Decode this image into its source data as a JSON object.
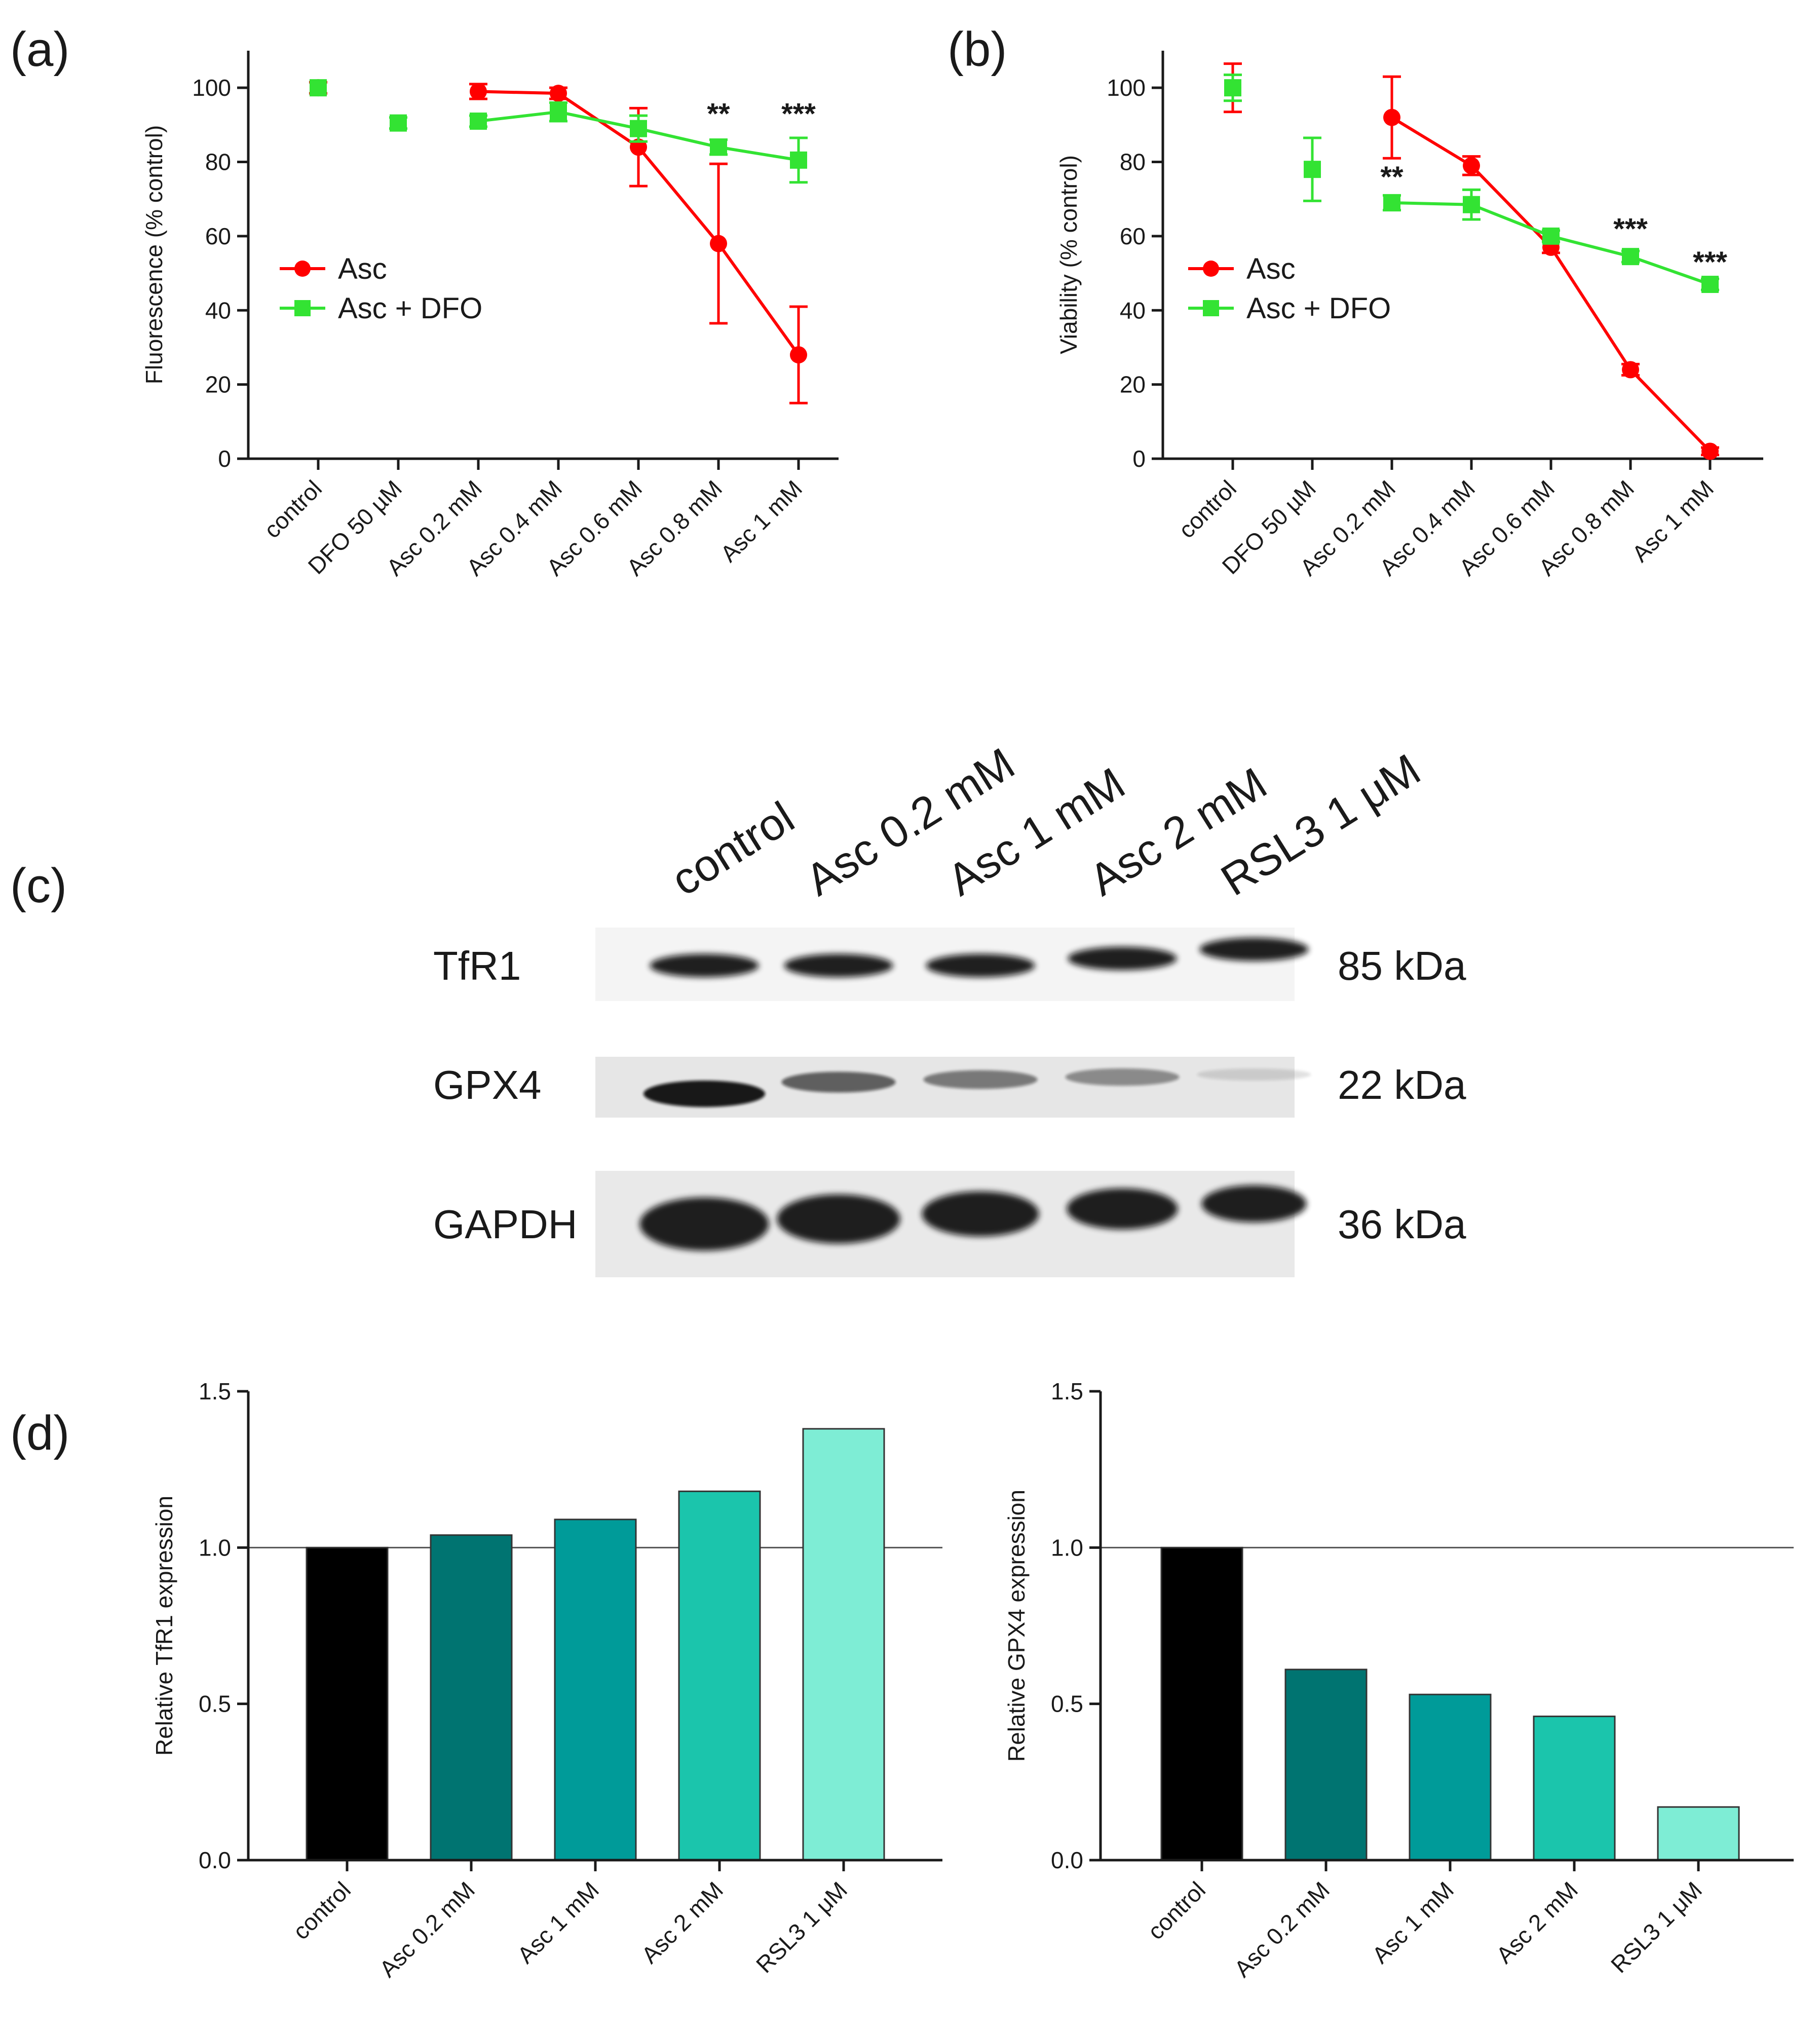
{
  "colors": {
    "asc": "#ff0000",
    "asc_dfo": "#33e333",
    "axis": "#1a1a1a",
    "bars": [
      "#000000",
      "#007471",
      "#009b99",
      "#1bc5ac",
      "#7eedd5"
    ]
  },
  "panels": {
    "a": {
      "label": "(a)"
    },
    "b": {
      "label": "(b)"
    },
    "c": {
      "label": "(c)"
    },
    "d": {
      "label": "(d)"
    }
  },
  "blot": {
    "lanes": [
      "control",
      "Asc 0.2 mM",
      "Asc 1 mM",
      "Asc 2 mM",
      "RSL3 1 μM"
    ],
    "rows": [
      {
        "protein": "TfR1",
        "weight": "85 kDa",
        "intensity": [
          0.95,
          0.95,
          0.95,
          0.95,
          0.95
        ]
      },
      {
        "protein": "GPX4",
        "weight": "22 kDa",
        "intensity": [
          0.95,
          0.62,
          0.5,
          0.42,
          0.12
        ]
      },
      {
        "protein": "GAPDH",
        "weight": "36 kDa",
        "intensity": [
          1.0,
          1.0,
          1.0,
          1.0,
          1.0
        ]
      }
    ]
  },
  "chart_data": [
    {
      "id": "a",
      "type": "line",
      "title": "",
      "xlabel": "",
      "ylabel": "Fluorescence (% control)",
      "categories": [
        "control",
        "DFO 50 µM",
        "Asc 0.2 mM",
        "Asc 0.4 mM",
        "Asc 0.6 mM",
        "Asc 0.8 mM",
        "Asc 1 mM"
      ],
      "ylim": [
        0,
        110
      ],
      "yticks": [
        "0",
        "20",
        "40",
        "60",
        "80",
        "100"
      ],
      "legend": {
        "position": "center-left",
        "entries": [
          "Asc",
          "Asc + DFO"
        ]
      },
      "series": [
        {
          "name": "Asc",
          "marker": "circle",
          "values": [
            100,
            null,
            99,
            98.5,
            84,
            58,
            28
          ],
          "errors": [
            1.5,
            null,
            2,
            1.5,
            10.5,
            21.5,
            13
          ],
          "connect_from": 2
        },
        {
          "name": "Asc + DFO",
          "marker": "square",
          "values": [
            100,
            90.5,
            91,
            93.5,
            89,
            84,
            80.5
          ],
          "errors": [
            0,
            1.5,
            1.5,
            2.5,
            3.5,
            2,
            6
          ],
          "connect_from": 2
        }
      ],
      "annotations": [
        {
          "category": "Asc 0.8 mM",
          "text": "**",
          "y": 93
        },
        {
          "category": "Asc 1 mM",
          "text": "***",
          "y": 93
        }
      ]
    },
    {
      "id": "b",
      "type": "line",
      "title": "",
      "xlabel": "",
      "ylabel": "Viability (% control)",
      "categories": [
        "control",
        "DFO 50 µM",
        "Asc 0.2 mM",
        "Asc 0.4 mM",
        "Asc 0.6 mM",
        "Asc 0.8 mM",
        "Asc 1 mM"
      ],
      "ylim": [
        0,
        110
      ],
      "yticks": [
        "0",
        "20",
        "40",
        "60",
        "80",
        "100"
      ],
      "legend": {
        "position": "center-left",
        "entries": [
          "Asc",
          "Asc + DFO"
        ]
      },
      "series": [
        {
          "name": "Asc",
          "marker": "circle",
          "values": [
            100,
            null,
            92,
            79,
            57,
            24,
            2
          ],
          "errors": [
            6.5,
            null,
            11,
            2.5,
            1.5,
            1.5,
            1
          ],
          "connect_from": 2
        },
        {
          "name": "Asc + DFO",
          "marker": "square",
          "values": [
            100,
            78,
            69,
            68.5,
            60,
            54.5,
            47
          ],
          "errors": [
            3.5,
            8.5,
            2,
            4,
            1.5,
            1.5,
            1.5
          ],
          "connect_from": 2
        }
      ],
      "annotations": [
        {
          "category": "Asc 0.2 mM",
          "text": "**",
          "y": 76
        },
        {
          "category": "Asc 0.8 mM",
          "text": "***",
          "y": 62
        },
        {
          "category": "Asc 1 mM",
          "text": "***",
          "y": 53
        }
      ]
    },
    {
      "id": "d1",
      "type": "bar",
      "title": "",
      "xlabel": "",
      "ylabel": "Relative TfR1 expression",
      "categories": [
        "control",
        "Asc 0.2 mM",
        "Asc 1 mM",
        "Asc 2 mM",
        "RSL3 1 μM"
      ],
      "values": [
        1.0,
        1.04,
        1.09,
        1.18,
        1.38
      ],
      "ylim": [
        0,
        1.5
      ],
      "yticks": [
        "0.0",
        "0.5",
        "1.0",
        "1.5"
      ],
      "reference_line": 1.0
    },
    {
      "id": "d2",
      "type": "bar",
      "title": "",
      "xlabel": "",
      "ylabel": "Relative GPX4 expression",
      "categories": [
        "control",
        "Asc 0.2 mM",
        "Asc 1 mM",
        "Asc 2 mM",
        "RSL3 1 μM"
      ],
      "values": [
        1.0,
        0.61,
        0.53,
        0.46,
        0.17
      ],
      "ylim": [
        0,
        1.5
      ],
      "yticks": [
        "0.0",
        "0.5",
        "1.0",
        "1.5"
      ],
      "reference_line": 1.0
    }
  ]
}
